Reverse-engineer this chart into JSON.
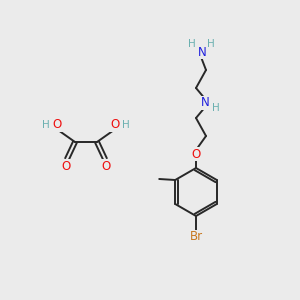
{
  "background_color": "#ebebeb",
  "bond_color": "#282828",
  "atom_colors": {
    "C": "#282828",
    "H": "#6ab0b0",
    "N": "#2020dd",
    "O": "#ee1111",
    "Br": "#c87820"
  },
  "fig_width": 3.0,
  "fig_height": 3.0,
  "dpi": 100
}
